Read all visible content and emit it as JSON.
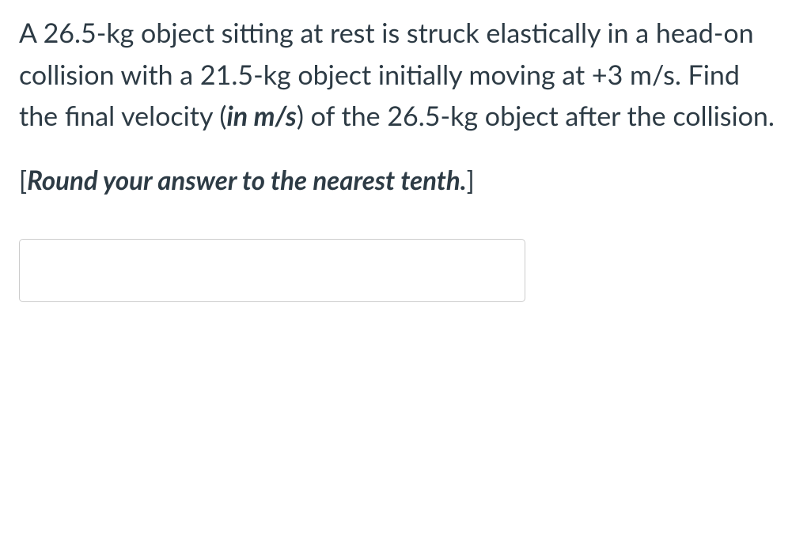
{
  "question": {
    "part1": "A 26.5-kg object sitting at rest is struck elastically in a head-on collision with a 21.5-kg object initially moving at +3 m/s. Find the final velocity (",
    "emphasis1": "in m/s",
    "part2": ") of the 26.5-kg object after the collision."
  },
  "instruction": {
    "bracket_open": "[",
    "text": "Round your answer to the nearest tenth.",
    "bracket_close": "]"
  },
  "answer": {
    "value": "",
    "placeholder": ""
  },
  "styling": {
    "text_color": "#2d3b45",
    "background_color": "#ffffff",
    "input_border_color": "#cccccc",
    "input_border_radius": 5,
    "question_fontsize": 34,
    "instruction_fontsize": 33,
    "font_family": "Lato, Helvetica Neue, Helvetica, Arial, sans-serif"
  }
}
